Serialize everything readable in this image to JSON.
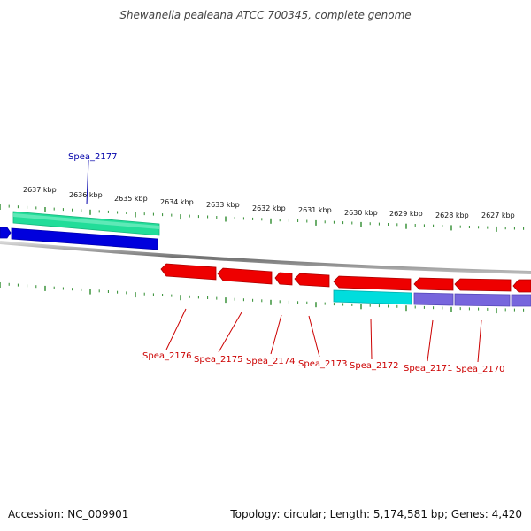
{
  "title": "Shewanella pealeana ATCC 700345, complete genome",
  "footer": {
    "accession": "Accession: NC_009901",
    "summary": "Topology: circular; Length: 5,174,581 bp; Genes: 4,420"
  },
  "colors": {
    "backbone": "#8a8a8a",
    "tick": "#2e8b2e",
    "forward_label": "#0000aa",
    "reverse_label": "#cc0000",
    "gene_blue": "#0000dd",
    "gene_teal": "#22dd99",
    "gene_red": "#ee0000",
    "gene_cyan": "#00dddd",
    "gene_purple": "#7766dd"
  },
  "scale_labels": [
    "2637 kbp",
    "2636 kbp",
    "2635 kbp",
    "2634 kbp",
    "2633 kbp",
    "2632 kbp",
    "2631 kbp",
    "2630 kbp",
    "2629 kbp",
    "2628 kbp",
    "2627 kbp"
  ],
  "gene_labels": {
    "forward": [
      "Spea_2177"
    ],
    "reverse": [
      "Spea_2176",
      "Spea_2175",
      "Spea_2174",
      "Spea_2173",
      "Spea_2172",
      "Spea_2171",
      "Spea_2170"
    ]
  },
  "features": {
    "forward_outer": [
      {
        "name": "Spea_2177",
        "color_key": "gene_teal"
      }
    ],
    "forward_inner": [
      {
        "name": "",
        "color_key": "gene_blue"
      },
      {
        "name": "",
        "color_key": "gene_blue"
      }
    ],
    "reverse_inner": [
      {
        "name": "Spea_2176",
        "color_key": "gene_red"
      },
      {
        "name": "Spea_2175",
        "color_key": "gene_red"
      },
      {
        "name": "Spea_2174",
        "color_key": "gene_red"
      },
      {
        "name": "Spea_2173",
        "color_key": "gene_red"
      },
      {
        "name": "Spea_2172",
        "color_key": "gene_red"
      },
      {
        "name": "Spea_2171",
        "color_key": "gene_red"
      },
      {
        "name": "Spea_2170",
        "color_key": "gene_red"
      },
      {
        "name": "",
        "color_key": "gene_red"
      }
    ],
    "reverse_outer": [
      {
        "name": "",
        "color_key": "gene_cyan"
      },
      {
        "name": "",
        "color_key": "gene_purple"
      },
      {
        "name": "",
        "color_key": "gene_purple"
      },
      {
        "name": "",
        "color_key": "gene_purple"
      }
    ]
  }
}
